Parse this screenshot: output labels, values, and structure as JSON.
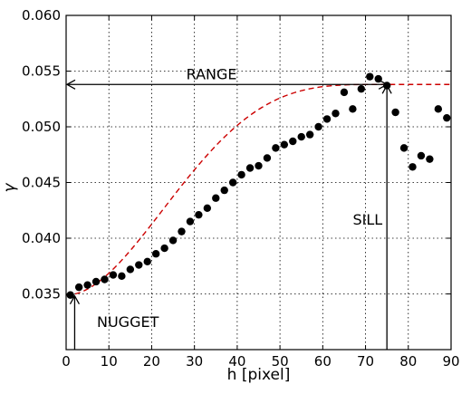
{
  "chart_data": {
    "type": "scatter",
    "title": "",
    "xlabel": "h [pixel]",
    "ylabel": "γ",
    "xlim": [
      0,
      90
    ],
    "ylim": [
      0.03,
      0.06
    ],
    "xticks": [
      0,
      10,
      20,
      30,
      40,
      50,
      60,
      70,
      80,
      90
    ],
    "yticks": [
      0.035,
      0.04,
      0.045,
      0.05,
      0.055,
      0.06
    ],
    "ytick_labels": [
      "0.035",
      "0.040",
      "0.045",
      "0.050",
      "0.055",
      "0.060"
    ],
    "grid": true,
    "series": [
      {
        "kind": "points",
        "color": "#000000",
        "x": [
          1,
          3,
          5,
          7,
          9,
          11,
          13,
          15,
          17,
          19,
          21,
          23,
          25,
          27,
          29,
          31,
          33,
          35,
          37,
          39,
          41,
          43,
          45,
          47,
          49,
          51,
          53,
          55,
          57,
          59,
          61,
          63,
          65,
          67,
          69,
          71,
          73,
          75,
          77,
          79,
          81,
          83,
          85,
          87,
          89
        ],
        "y": [
          0.0349,
          0.0356,
          0.0358,
          0.0361,
          0.0363,
          0.0367,
          0.0366,
          0.0372,
          0.0376,
          0.0379,
          0.0386,
          0.0391,
          0.0398,
          0.0406,
          0.0415,
          0.0421,
          0.0427,
          0.0436,
          0.0443,
          0.045,
          0.0457,
          0.0463,
          0.0465,
          0.0472,
          0.0481,
          0.0484,
          0.0487,
          0.0491,
          0.0493,
          0.05,
          0.0507,
          0.0512,
          0.0531,
          0.0516,
          0.0534,
          0.0545,
          0.0543,
          0.0537,
          0.0513,
          0.0481,
          0.0464,
          0.0474,
          0.0471,
          0.0516,
          0.0508
        ]
      },
      {
        "kind": "model",
        "style": "dashed",
        "color": "#cc0000",
        "nugget": 0.0349,
        "sill": 0.0538,
        "range": 75
      }
    ],
    "annotations": {
      "range_label": "RANGE",
      "sill_label": "SILL",
      "nugget_label": "NUGGET",
      "range_x": [
        0,
        75
      ],
      "range_y": 0.0538,
      "sill_x": 75,
      "nugget_x": 2
    }
  }
}
